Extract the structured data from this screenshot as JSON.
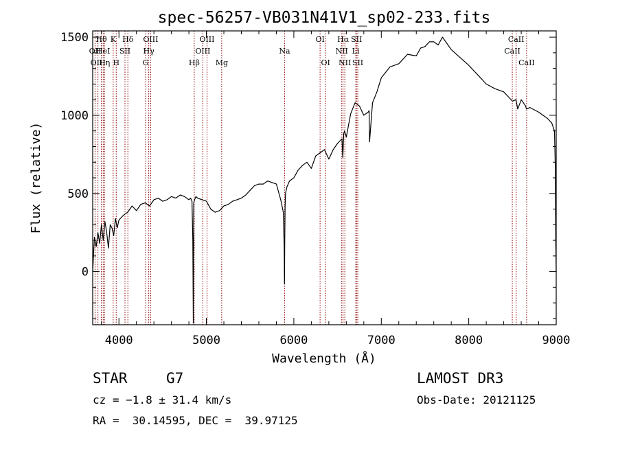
{
  "chart_data": {
    "type": "line",
    "title": "spec-56257-VB031N41V1_sp02-233.fits",
    "xlabel": "Wavelength (Å)",
    "ylabel": "Flux (relative)",
    "xlim": [
      3700,
      9000
    ],
    "ylim": [
      -340,
      1540
    ],
    "xticks": [
      4000,
      5000,
      6000,
      7000,
      8000,
      9000
    ],
    "yticks": [
      0,
      500,
      1000,
      1500
    ],
    "grid": false,
    "line_color": "#000000",
    "marker_color": "#8b0000",
    "spectrum": {
      "x": [
        3700,
        3720,
        3740,
        3760,
        3780,
        3800,
        3820,
        3840,
        3860,
        3880,
        3900,
        3920,
        3940,
        3960,
        3980,
        4000,
        4050,
        4100,
        4150,
        4200,
        4250,
        4300,
        4350,
        4400,
        4450,
        4500,
        4550,
        4600,
        4650,
        4700,
        4750,
        4800,
        4820,
        4835,
        4845,
        4850,
        4855,
        4865,
        4880,
        4900,
        4950,
        5000,
        5050,
        5100,
        5150,
        5200,
        5250,
        5300,
        5350,
        5400,
        5450,
        5500,
        5550,
        5600,
        5650,
        5700,
        5750,
        5800,
        5850,
        5880,
        5890,
        5893,
        5896,
        5900,
        5905,
        5920,
        5950,
        6000,
        6050,
        6100,
        6150,
        6200,
        6250,
        6300,
        6350,
        6400,
        6450,
        6500,
        6550,
        6560,
        6565,
        6570,
        6580,
        6600,
        6650,
        6700,
        6750,
        6800,
        6850,
        6860,
        6866,
        6875,
        6900,
        6950,
        7000,
        7100,
        7200,
        7300,
        7400,
        7450,
        7500,
        7550,
        7600,
        7650,
        7700,
        7800,
        7900,
        8000,
        8100,
        8200,
        8300,
        8400,
        8450,
        8500,
        8540,
        8560,
        8600,
        8650,
        8660,
        8700,
        8800,
        8900,
        8950,
        8980,
        8990,
        8995,
        9000
      ],
      "y": [
        0,
        220,
        160,
        250,
        180,
        300,
        200,
        320,
        250,
        150,
        300,
        280,
        230,
        340,
        280,
        330,
        360,
        380,
        420,
        390,
        430,
        440,
        420,
        460,
        470,
        450,
        460,
        480,
        470,
        490,
        480,
        460,
        470,
        450,
        200,
        -330,
        440,
        460,
        480,
        470,
        460,
        450,
        400,
        380,
        390,
        420,
        430,
        450,
        460,
        470,
        490,
        520,
        550,
        560,
        560,
        580,
        570,
        560,
        460,
        380,
        150,
        -80,
        200,
        420,
        500,
        540,
        580,
        600,
        650,
        680,
        700,
        660,
        740,
        760,
        780,
        720,
        780,
        820,
        850,
        730,
        800,
        880,
        900,
        860,
        1010,
        1080,
        1060,
        1000,
        1020,
        1030,
        830,
        900,
        1080,
        1150,
        1240,
        1310,
        1330,
        1390,
        1380,
        1430,
        1440,
        1470,
        1470,
        1450,
        1500,
        1420,
        1370,
        1320,
        1260,
        1200,
        1170,
        1150,
        1120,
        1090,
        1100,
        1040,
        1100,
        1060,
        1040,
        1050,
        1020,
        980,
        950,
        900,
        660,
        180,
        0
      ]
    },
    "line_markers": [
      {
        "name": "Hθ",
        "wl": 3798,
        "row": 0
      },
      {
        "name": "OII",
        "wl": 3727,
        "row": 1
      },
      {
        "name": "OIII",
        "wl": 3760,
        "row": 2
      },
      {
        "name": "HeI",
        "wl": 3820,
        "row": 1
      },
      {
        "name": "Hη",
        "wl": 3835,
        "row": 2
      },
      {
        "name": "K",
        "wl": 3934,
        "row": 0
      },
      {
        "name": "SII",
        "wl": 4069,
        "row": 1
      },
      {
        "name": "H",
        "wl": 3969,
        "row": 2
      },
      {
        "name": "Hδ",
        "wl": 4102,
        "row": 0
      },
      {
        "name": "OIII",
        "wl": 4363,
        "row": 0
      },
      {
        "name": "Hγ",
        "wl": 4341,
        "row": 1
      },
      {
        "name": "G",
        "wl": 4305,
        "row": 2
      },
      {
        "name": "OIII",
        "wl": 5007,
        "row": 0
      },
      {
        "name": "OIII",
        "wl": 4959,
        "row": 1
      },
      {
        "name": "Hβ",
        "wl": 4861,
        "row": 2
      },
      {
        "name": "Mg",
        "wl": 5175,
        "row": 2
      },
      {
        "name": "Na",
        "wl": 5894,
        "row": 1
      },
      {
        "name": "OI",
        "wl": 6300,
        "row": 0
      },
      {
        "name": "OI",
        "wl": 6363,
        "row": 2
      },
      {
        "name": "Hα",
        "wl": 6563,
        "row": 0
      },
      {
        "name": "NII",
        "wl": 6548,
        "row": 1
      },
      {
        "name": "NII",
        "wl": 6583,
        "row": 2
      },
      {
        "name": "SII",
        "wl": 6717,
        "row": 0
      },
      {
        "name": "Li",
        "wl": 6708,
        "row": 1
      },
      {
        "name": "SII",
        "wl": 6731,
        "row": 2
      },
      {
        "name": "CaII",
        "wl": 8542,
        "row": 0
      },
      {
        "name": "CaII",
        "wl": 8498,
        "row": 1
      },
      {
        "name": "CaII",
        "wl": 8662,
        "row": 2
      }
    ]
  },
  "info": {
    "class_label": "STAR",
    "subclass": "G7",
    "redshift": "cz = −1.8 ± 31.4 km/s",
    "coords": "RA =  30.14595, DEC =  39.97125",
    "survey": "LAMOST DR3",
    "obs_date": "Obs-Date: 20121125"
  }
}
